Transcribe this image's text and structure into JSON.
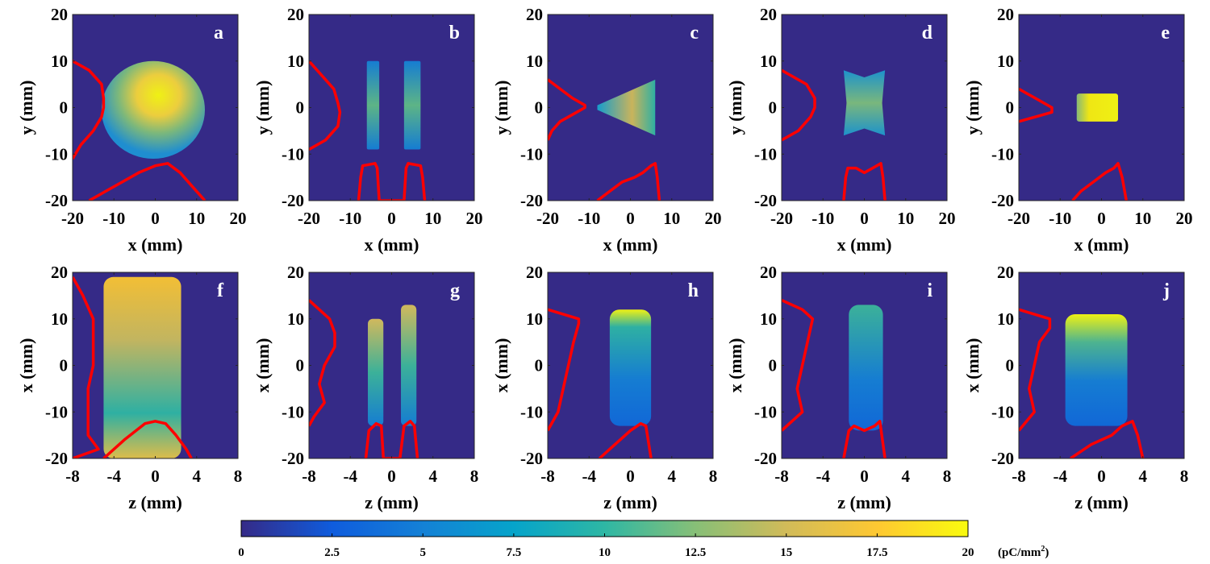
{
  "figure": {
    "colorbar": {
      "ticks": [
        "0",
        "2.5",
        "5",
        "7.5",
        "10",
        "12.5",
        "15",
        "17.5",
        "20"
      ],
      "unit": "(pC/mm",
      "unit_sup": "2",
      "unit_close": ")",
      "stops": [
        "#352a87",
        "#0f5cdd",
        "#1481d6",
        "#06a4ca",
        "#2eb7a4",
        "#87bf77",
        "#d1bb59",
        "#fec832",
        "#f9fb0e"
      ]
    },
    "colors": {
      "background": "#352a87",
      "profile": "#ff0000"
    }
  },
  "chart_data": [
    {
      "type": "heatmap",
      "panel": "a",
      "xlabel": "x (mm)",
      "ylabel": "y (mm)",
      "xlim": [
        -20,
        20
      ],
      "ylim": [
        -20,
        20
      ],
      "xticks": [
        "-20",
        "-10",
        "0",
        "10",
        "20"
      ],
      "yticks": [
        "20",
        "10",
        "0",
        "-10",
        "-20"
      ],
      "intensity": {
        "shape": "blob",
        "x": [
          -13,
          12
        ],
        "y": [
          -11,
          10
        ],
        "peak": 18
      },
      "profile_y": {
        "y": [
          10,
          8,
          5,
          2,
          0,
          -2,
          -5,
          -8,
          -11
        ],
        "x": [
          -20,
          -16,
          -13,
          -12.5,
          -12.5,
          -13,
          -15,
          -18,
          -20
        ]
      },
      "profile_x": {
        "x": [
          -16,
          -12,
          -8,
          -4,
          0,
          3,
          6,
          9,
          12
        ],
        "y": [
          -20,
          -18,
          -16,
          -14,
          -12.5,
          -12,
          -14,
          -17,
          -20
        ]
      }
    },
    {
      "type": "heatmap",
      "panel": "b",
      "xlabel": "x (mm)",
      "ylabel": "y (mm)",
      "xlim": [
        -20,
        20
      ],
      "ylim": [
        -20,
        20
      ],
      "xticks": [
        "-20",
        "-10",
        "0",
        "10",
        "20"
      ],
      "yticks": [
        "20",
        "10",
        "0",
        "-10",
        "-20"
      ],
      "intensity": {
        "shape": "two-bars",
        "bars": [
          [
            -6,
            -3
          ],
          [
            3,
            7
          ]
        ],
        "y": [
          -9,
          10
        ],
        "peak": 11
      },
      "profile_y": {
        "y": [
          10,
          7,
          4,
          1,
          -1,
          -4,
          -7,
          -9
        ],
        "x": [
          -20,
          -17,
          -14,
          -13,
          -12.5,
          -13,
          -16,
          -20
        ]
      },
      "profile_x": {
        "x": [
          -8,
          -7.5,
          -7,
          -4,
          -3.5,
          -3,
          3,
          3.5,
          4,
          7,
          7.5,
          8
        ],
        "y": [
          -20,
          -15,
          -12.5,
          -12,
          -13,
          -20,
          -20,
          -13,
          -12,
          -12.5,
          -15,
          -20
        ]
      }
    },
    {
      "type": "heatmap",
      "panel": "c",
      "xlabel": "x (mm)",
      "ylabel": "y (mm)",
      "xlim": [
        -20,
        20
      ],
      "ylim": [
        -20,
        20
      ],
      "xticks": [
        "-20",
        "-10",
        "0",
        "10",
        "20"
      ],
      "yticks": [
        "20",
        "10",
        "0",
        "-10",
        "-20"
      ],
      "intensity": {
        "shape": "wedge",
        "x": [
          -8,
          6
        ],
        "half_height": [
          0.5,
          6
        ],
        "peak": 14
      },
      "profile_y": {
        "y": [
          6,
          4,
          2,
          0.5,
          0,
          -1,
          -3,
          -5,
          -7
        ],
        "x": [
          -20,
          -17,
          -14,
          -11,
          -11,
          -13,
          -17,
          -19,
          -20
        ]
      },
      "profile_x": {
        "x": [
          -8,
          -5,
          -2,
          1,
          3,
          5,
          6,
          6.5,
          7
        ],
        "y": [
          -20,
          -18,
          -16,
          -15,
          -14,
          -12.5,
          -12,
          -15,
          -20
        ]
      }
    },
    {
      "type": "heatmap",
      "panel": "d",
      "xlabel": "x (mm)",
      "ylabel": "y (mm)",
      "xlim": [
        -20,
        20
      ],
      "ylim": [
        -20,
        20
      ],
      "xticks": [
        "-20",
        "-10",
        "0",
        "10",
        "20"
      ],
      "yticks": [
        "20",
        "10",
        "0",
        "-10",
        "-20"
      ],
      "intensity": {
        "shape": "bowtie",
        "x": [
          -5,
          5
        ],
        "y": [
          -6,
          8
        ],
        "peak": 12
      },
      "profile_y": {
        "y": [
          8,
          5,
          2,
          0,
          -2,
          -5,
          -7
        ],
        "x": [
          -20,
          -14,
          -12,
          -12,
          -13,
          -16,
          -20
        ]
      },
      "profile_x": {
        "x": [
          -5,
          -4.5,
          -4,
          -2,
          0,
          2,
          4,
          4.5,
          5
        ],
        "y": [
          -20,
          -15,
          -13,
          -13,
          -14,
          -13,
          -12,
          -15,
          -20
        ]
      }
    },
    {
      "type": "heatmap",
      "panel": "e",
      "xlabel": "x (mm)",
      "ylabel": "y (mm)",
      "xlim": [
        -20,
        20
      ],
      "ylim": [
        -20,
        20
      ],
      "xticks": [
        "-20",
        "-10",
        "0",
        "10",
        "20"
      ],
      "yticks": [
        "20",
        "10",
        "0",
        "-10",
        "-20"
      ],
      "intensity": {
        "shape": "slab",
        "x": [
          -6,
          4
        ],
        "y": [
          -3,
          3
        ],
        "peak": 19
      },
      "profile_y": {
        "y": [
          4,
          2,
          0,
          -1,
          -2,
          -3
        ],
        "x": [
          -20,
          -16,
          -12,
          -12,
          -16,
          -20
        ]
      },
      "profile_x": {
        "x": [
          -7,
          -5,
          -2,
          1,
          3,
          4,
          5,
          6
        ],
        "y": [
          -20,
          -18,
          -16,
          -14,
          -13,
          -12,
          -15,
          -20
        ]
      }
    },
    {
      "type": "heatmap",
      "panel": "f",
      "xlabel": "z (mm)",
      "ylabel": "x (mm)",
      "xlim": [
        -8,
        8
      ],
      "ylim": [
        -20,
        20
      ],
      "xticks": [
        "-8",
        "-4",
        "0",
        "4",
        "8"
      ],
      "yticks": [
        "20",
        "10",
        "0",
        "-10",
        "-20"
      ],
      "intensity": {
        "shape": "column",
        "z": [
          -5,
          2.5
        ],
        "x": [
          -20,
          19
        ],
        "peak": 17
      },
      "profile_y": {
        "y": [
          19,
          15,
          10,
          5,
          0,
          -5,
          -10,
          -15,
          -18,
          -20
        ],
        "x": [
          -8,
          -7,
          -6,
          -6,
          -6,
          -6.5,
          -6.5,
          -6.5,
          -5.5,
          -8
        ]
      },
      "profile_x": {
        "x": [
          -5,
          -3,
          -1,
          0,
          1,
          2,
          3,
          3.5
        ],
        "y": [
          -20,
          -16,
          -12.5,
          -12,
          -12.5,
          -15,
          -18,
          -20
        ]
      }
    },
    {
      "type": "heatmap",
      "panel": "g",
      "xlabel": "z (mm)",
      "ylabel": "x (mm)",
      "xlim": [
        -8,
        8
      ],
      "ylim": [
        -20,
        20
      ],
      "xticks": [
        "-8",
        "-4",
        "0",
        "4",
        "8"
      ],
      "yticks": [
        "20",
        "10",
        "0",
        "-10",
        "-20"
      ],
      "intensity": {
        "shape": "two-strips",
        "strips": [
          [
            -2.3,
            -0.8
          ],
          [
            0.9,
            2.4
          ]
        ],
        "x": [
          -13,
          13
        ],
        "peak": 14
      },
      "profile_y": {
        "y": [
          14,
          12,
          10,
          7,
          4,
          0,
          -4,
          -8,
          -11,
          -13
        ],
        "x": [
          -8,
          -7,
          -6,
          -5.5,
          -5.5,
          -6.5,
          -7,
          -6.5,
          -7.5,
          -8
        ]
      },
      "profile_x": {
        "x": [
          -2.5,
          -2.2,
          -1.5,
          -1,
          -0.8,
          0.8,
          1.2,
          1.8,
          2.2,
          2.5
        ],
        "y": [
          -20,
          -14,
          -12.5,
          -13,
          -20,
          -20,
          -13,
          -12,
          -13,
          -20
        ]
      }
    },
    {
      "type": "heatmap",
      "panel": "h",
      "xlabel": "z (mm)",
      "ylabel": "x (mm)",
      "xlim": [
        -8,
        8
      ],
      "ylim": [
        -20,
        20
      ],
      "xticks": [
        "-8",
        "-4",
        "0",
        "4",
        "8"
      ],
      "yticks": [
        "20",
        "10",
        "0",
        "-10",
        "-20"
      ],
      "intensity": {
        "shape": "column",
        "z": [
          -2,
          2
        ],
        "x": [
          -13,
          12
        ],
        "peak": 17
      },
      "profile_y": {
        "y": [
          12,
          10,
          9,
          5,
          0,
          -5,
          -10,
          -14
        ],
        "x": [
          -8,
          -5,
          -5,
          -5.5,
          -6,
          -6.5,
          -7,
          -8
        ]
      },
      "profile_x": {
        "x": [
          -3,
          -1,
          0,
          1,
          1.5,
          2
        ],
        "y": [
          -20,
          -16,
          -14,
          -12.5,
          -13,
          -20
        ]
      }
    },
    {
      "type": "heatmap",
      "panel": "i",
      "xlabel": "z (mm)",
      "ylabel": "x (mm)",
      "xlim": [
        -8,
        8
      ],
      "ylim": [
        -20,
        20
      ],
      "xticks": [
        "-8",
        "-4",
        "0",
        "4",
        "8"
      ],
      "yticks": [
        "20",
        "10",
        "0",
        "-10",
        "-20"
      ],
      "intensity": {
        "shape": "column",
        "z": [
          -1.5,
          1.8
        ],
        "x": [
          -14,
          13
        ],
        "peak": 11
      },
      "profile_y": {
        "y": [
          14,
          12,
          10,
          5,
          0,
          -5,
          -10,
          -12,
          -14
        ],
        "x": [
          -8,
          -6,
          -5,
          -5.5,
          -6,
          -6.5,
          -6,
          -7,
          -8
        ]
      },
      "profile_x": {
        "x": [
          -2,
          -1.5,
          -1,
          0,
          1,
          1.5,
          2
        ],
        "y": [
          -20,
          -14,
          -13,
          -14,
          -13,
          -12,
          -20
        ]
      }
    },
    {
      "type": "heatmap",
      "panel": "j",
      "xlabel": "z (mm)",
      "ylabel": "x (mm)",
      "xlim": [
        -8,
        8
      ],
      "ylim": [
        -20,
        20
      ],
      "xticks": [
        "-8",
        "-4",
        "0",
        "4",
        "8"
      ],
      "yticks": [
        "20",
        "10",
        "0",
        "-10",
        "-20"
      ],
      "intensity": {
        "shape": "column",
        "z": [
          -3.5,
          2.5
        ],
        "x": [
          -13,
          11
        ],
        "peak": 18
      },
      "profile_y": {
        "y": [
          12,
          10,
          8,
          5,
          0,
          -5,
          -10,
          -14
        ],
        "x": [
          -8,
          -5,
          -5,
          -6,
          -6.5,
          -7,
          -6.5,
          -8
        ]
      },
      "profile_x": {
        "x": [
          -3,
          -1,
          1,
          2,
          3,
          3.5,
          4
        ],
        "y": [
          -20,
          -17,
          -15,
          -13,
          -12,
          -15,
          -20
        ]
      }
    }
  ]
}
